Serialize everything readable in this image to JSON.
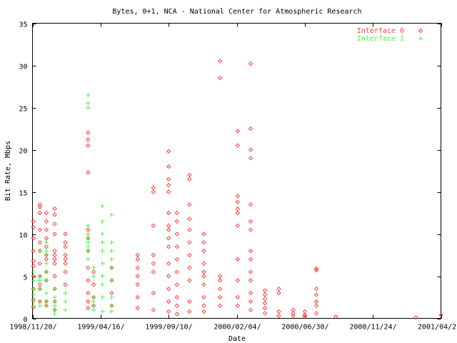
{
  "chart_data": {
    "type": "scatter",
    "title": "Bytes, 0+1, NCA - National Center for Atmospheric Research",
    "xlabel": "Date",
    "ylabel": "Bit Rate, Mbps",
    "ylim": [
      0,
      35
    ],
    "xlim": [
      "1998-11-20",
      "2001-04-20"
    ],
    "yticks": [
      0,
      5,
      10,
      15,
      20,
      25,
      30,
      35
    ],
    "xticks": [
      {
        "date": "1998-11-20",
        "label": "1998/11/20/"
      },
      {
        "date": "1999-04-16",
        "label": "1999/04/16/"
      },
      {
        "date": "1999-09-10",
        "label": "1999/09/10/"
      },
      {
        "date": "2000-02-04",
        "label": "2000/02/04/"
      },
      {
        "date": "2000-06-30",
        "label": "2000/06/30/"
      },
      {
        "date": "2000-11-24",
        "label": "2000/11/24/"
      },
      {
        "date": "2001-04-20",
        "label": "2001/04/2"
      }
    ],
    "legend_position": "top-right",
    "grid": false,
    "series": [
      {
        "name": "Interface 0",
        "color": "#ff4040",
        "marker": "diamond",
        "points": [
          [
            "1998-11-22",
            11.5
          ],
          [
            "1998-11-22",
            10.8
          ],
          [
            "1998-11-22",
            9.5
          ],
          [
            "1998-11-22",
            8.0
          ],
          [
            "1998-11-22",
            6.8
          ],
          [
            "1998-11-22",
            6.2
          ],
          [
            "1998-11-22",
            5.0
          ],
          [
            "1998-11-22",
            3.5
          ],
          [
            "1998-11-22",
            2.2
          ],
          [
            "1998-11-22",
            1.3
          ],
          [
            "1998-12-06",
            13.5
          ],
          [
            "1998-12-06",
            13.2
          ],
          [
            "1998-12-06",
            12.5
          ],
          [
            "1998-12-06",
            10.5
          ],
          [
            "1998-12-06",
            9.0
          ],
          [
            "1998-12-06",
            8.0
          ],
          [
            "1998-12-06",
            6.5
          ],
          [
            "1998-12-06",
            5.0
          ],
          [
            "1998-12-06",
            4.0
          ],
          [
            "1998-12-06",
            3.5
          ],
          [
            "1998-12-06",
            2.0
          ],
          [
            "1998-12-20",
            12.5
          ],
          [
            "1998-12-20",
            11.5
          ],
          [
            "1998-12-20",
            10.5
          ],
          [
            "1998-12-20",
            9.5
          ],
          [
            "1998-12-20",
            8.5
          ],
          [
            "1998-12-20",
            7.5
          ],
          [
            "1998-12-20",
            7.0
          ],
          [
            "1998-12-20",
            5.5
          ],
          [
            "1998-12-20",
            4.5
          ],
          [
            "1998-12-20",
            2.0
          ],
          [
            "1998-12-20",
            1.5
          ],
          [
            "1999-01-07",
            13.0
          ],
          [
            "1999-01-07",
            12.3
          ],
          [
            "1999-01-07",
            11.2
          ],
          [
            "1999-01-07",
            10.0
          ],
          [
            "1999-01-07",
            8.0
          ],
          [
            "1999-01-07",
            7.5
          ],
          [
            "1999-01-07",
            7.0
          ],
          [
            "1999-01-07",
            6.5
          ],
          [
            "1999-01-07",
            5.0
          ],
          [
            "1999-01-07",
            3.5
          ],
          [
            "1999-01-07",
            2.0
          ],
          [
            "1999-01-07",
            1.0
          ],
          [
            "1999-01-30",
            10.0
          ],
          [
            "1999-01-30",
            9.0
          ],
          [
            "1999-01-30",
            8.5
          ],
          [
            "1999-01-30",
            7.5
          ],
          [
            "1999-01-30",
            7.0
          ],
          [
            "1999-01-30",
            6.5
          ],
          [
            "1999-01-30",
            5.5
          ],
          [
            "1999-01-30",
            4.0
          ],
          [
            "1999-03-20",
            22.0
          ],
          [
            "1999-03-20",
            21.2
          ],
          [
            "1999-03-20",
            20.5
          ],
          [
            "1999-03-20",
            17.3
          ],
          [
            "1999-03-20",
            10.5
          ],
          [
            "1999-03-20",
            9.5
          ],
          [
            "1999-03-20",
            8.0
          ],
          [
            "1999-03-20",
            6.0
          ],
          [
            "1999-03-20",
            4.5
          ],
          [
            "1999-03-20",
            3.0
          ],
          [
            "1999-03-20",
            2.0
          ],
          [
            "1999-03-20",
            1.2
          ],
          [
            "1999-04-01",
            5.5
          ],
          [
            "1999-04-01",
            4.0
          ],
          [
            "1999-04-01",
            2.5
          ],
          [
            "1999-04-01",
            1.5
          ],
          [
            "1999-05-10",
            6.0
          ],
          [
            "1999-05-10",
            4.5
          ],
          [
            "1999-05-10",
            3.0
          ],
          [
            "1999-05-10",
            1.5
          ],
          [
            "1999-07-05",
            7.5
          ],
          [
            "1999-07-05",
            7.0
          ],
          [
            "1999-07-05",
            6.0
          ],
          [
            "1999-07-05",
            5.0
          ],
          [
            "1999-07-05",
            4.0
          ],
          [
            "1999-07-05",
            2.5
          ],
          [
            "1999-07-05",
            1.2
          ],
          [
            "1999-08-08",
            15.5
          ],
          [
            "1999-08-08",
            15.0
          ],
          [
            "1999-08-08",
            11.0
          ],
          [
            "1999-08-08",
            7.5
          ],
          [
            "1999-08-08",
            6.5
          ],
          [
            "1999-08-08",
            5.5
          ],
          [
            "1999-08-08",
            3.0
          ],
          [
            "1999-08-08",
            1.0
          ],
          [
            "1999-09-10",
            19.8
          ],
          [
            "1999-09-10",
            18.0
          ],
          [
            "1999-09-10",
            16.5
          ],
          [
            "1999-09-10",
            15.8
          ],
          [
            "1999-09-10",
            15.0
          ],
          [
            "1999-09-10",
            12.5
          ],
          [
            "1999-09-10",
            11.0
          ],
          [
            "1999-09-10",
            10.5
          ],
          [
            "1999-09-10",
            9.5
          ],
          [
            "1999-09-10",
            8.5
          ],
          [
            "1999-09-10",
            6.5
          ],
          [
            "1999-09-10",
            5.0
          ],
          [
            "1999-09-10",
            3.5
          ],
          [
            "1999-09-10",
            2.0
          ],
          [
            "1999-09-10",
            0.8
          ],
          [
            "1999-09-28",
            12.5
          ],
          [
            "1999-09-28",
            11.5
          ],
          [
            "1999-09-28",
            10.0
          ],
          [
            "1999-09-28",
            8.5
          ],
          [
            "1999-09-28",
            7.0
          ],
          [
            "1999-09-28",
            5.5
          ],
          [
            "1999-09-28",
            4.0
          ],
          [
            "1999-09-28",
            2.5
          ],
          [
            "1999-09-28",
            1.5
          ],
          [
            "1999-09-28",
            0.5
          ],
          [
            "1999-10-25",
            17.0
          ],
          [
            "1999-10-25",
            16.5
          ],
          [
            "1999-10-25",
            13.5
          ],
          [
            "1999-10-25",
            11.8
          ],
          [
            "1999-10-25",
            10.5
          ],
          [
            "1999-10-25",
            9.0
          ],
          [
            "1999-10-25",
            7.5
          ],
          [
            "1999-10-25",
            6.0
          ],
          [
            "1999-10-25",
            4.5
          ],
          [
            "1999-10-25",
            2.0
          ],
          [
            "1999-10-25",
            0.8
          ],
          [
            "1999-11-25",
            10.0
          ],
          [
            "1999-11-25",
            9.0
          ],
          [
            "1999-11-25",
            8.0
          ],
          [
            "1999-11-25",
            6.5
          ],
          [
            "1999-11-25",
            5.5
          ],
          [
            "1999-11-25",
            5.0
          ],
          [
            "1999-11-25",
            4.0
          ],
          [
            "1999-11-25",
            2.5
          ],
          [
            "1999-11-25",
            1.5
          ],
          [
            "1999-11-25",
            0.8
          ],
          [
            "1999-12-30",
            30.5
          ],
          [
            "1999-12-30",
            28.5
          ],
          [
            "1999-12-30",
            5.0
          ],
          [
            "1999-12-30",
            4.5
          ],
          [
            "1999-12-30",
            3.5
          ],
          [
            "1999-12-30",
            2.5
          ],
          [
            "1999-12-30",
            1.5
          ],
          [
            "2000-02-06",
            22.2
          ],
          [
            "2000-02-06",
            20.5
          ],
          [
            "2000-02-06",
            14.5
          ],
          [
            "2000-02-06",
            13.8
          ],
          [
            "2000-02-06",
            13.0
          ],
          [
            "2000-02-06",
            12.5
          ],
          [
            "2000-02-06",
            11.0
          ],
          [
            "2000-02-06",
            7.0
          ],
          [
            "2000-02-06",
            4.5
          ],
          [
            "2000-02-06",
            2.5
          ],
          [
            "2000-02-06",
            1.5
          ],
          [
            "2000-03-05",
            30.2
          ],
          [
            "2000-03-05",
            22.5
          ],
          [
            "2000-03-05",
            20.0
          ],
          [
            "2000-03-05",
            19.0
          ],
          [
            "2000-03-05",
            13.5
          ],
          [
            "2000-03-05",
            11.5
          ],
          [
            "2000-03-05",
            10.5
          ],
          [
            "2000-03-05",
            8.0
          ],
          [
            "2000-03-05",
            7.0
          ],
          [
            "2000-03-05",
            5.5
          ],
          [
            "2000-03-05",
            4.5
          ],
          [
            "2000-03-05",
            3.0
          ],
          [
            "2000-03-05",
            2.0
          ],
          [
            "2000-03-05",
            1.0
          ],
          [
            "2000-04-05",
            3.3
          ],
          [
            "2000-04-05",
            2.8
          ],
          [
            "2000-04-05",
            2.3
          ],
          [
            "2000-04-05",
            1.8
          ],
          [
            "2000-04-05",
            1.2
          ],
          [
            "2000-04-05",
            0.6
          ],
          [
            "2000-05-05",
            3.5
          ],
          [
            "2000-05-05",
            3.0
          ],
          [
            "2000-05-05",
            0.8
          ],
          [
            "2000-05-05",
            0.3
          ],
          [
            "2000-06-05",
            1.0
          ],
          [
            "2000-06-05",
            0.6
          ],
          [
            "2000-06-05",
            0.3
          ],
          [
            "2000-06-30",
            0.8
          ],
          [
            "2000-06-30",
            0.4
          ],
          [
            "2000-06-30",
            0.2
          ],
          [
            "2000-07-25",
            5.9
          ],
          [
            "2000-07-25",
            5.7
          ],
          [
            "2000-07-25",
            3.5
          ],
          [
            "2000-07-25",
            2.8
          ],
          [
            "2000-07-25",
            2.0
          ],
          [
            "2000-07-25",
            1.5
          ],
          [
            "2000-07-25",
            0.6
          ],
          [
            "2000-09-05",
            0.2
          ],
          [
            "2001-02-25",
            0.1
          ],
          [
            "2001-04-20",
            0.4
          ]
        ]
      },
      {
        "name": "Interface 1",
        "color": "#40ff40",
        "marker": "plus",
        "points": [
          [
            "1998-11-22",
            5.5
          ],
          [
            "1998-11-22",
            4.5
          ],
          [
            "1998-11-22",
            3.5
          ],
          [
            "1998-11-22",
            2.8
          ],
          [
            "1998-11-22",
            2.0
          ],
          [
            "1998-11-22",
            1.5
          ],
          [
            "1998-12-06",
            8.0
          ],
          [
            "1998-12-06",
            5.0
          ],
          [
            "1998-12-06",
            4.5
          ],
          [
            "1998-12-06",
            3.5
          ],
          [
            "1998-12-06",
            2.0
          ],
          [
            "1998-12-06",
            1.5
          ],
          [
            "1998-12-20",
            9.0
          ],
          [
            "1998-12-20",
            8.0
          ],
          [
            "1998-12-20",
            7.5
          ],
          [
            "1998-12-20",
            6.5
          ],
          [
            "1998-12-20",
            5.5
          ],
          [
            "1998-12-20",
            4.5
          ],
          [
            "1998-12-20",
            3.0
          ],
          [
            "1998-12-20",
            2.0
          ],
          [
            "1998-12-20",
            1.5
          ],
          [
            "1999-01-07",
            3.5
          ],
          [
            "1999-01-07",
            2.5
          ],
          [
            "1999-01-07",
            2.0
          ],
          [
            "1999-01-07",
            1.5
          ],
          [
            "1999-01-07",
            1.0
          ],
          [
            "1999-01-07",
            0.5
          ],
          [
            "1999-01-30",
            3.0
          ],
          [
            "1999-01-30",
            2.0
          ],
          [
            "1999-01-30",
            1.0
          ],
          [
            "1999-03-20",
            26.5
          ],
          [
            "1999-03-20",
            25.5
          ],
          [
            "1999-03-20",
            25.0
          ],
          [
            "1999-03-20",
            11.0
          ],
          [
            "1999-03-20",
            10.0
          ],
          [
            "1999-03-20",
            9.5
          ],
          [
            "1999-03-20",
            9.0
          ],
          [
            "1999-03-20",
            8.5
          ],
          [
            "1999-03-20",
            8.0
          ],
          [
            "1999-03-20",
            7.0
          ],
          [
            "1999-04-01",
            6.0
          ],
          [
            "1999-04-01",
            5.0
          ],
          [
            "1999-04-01",
            2.5
          ],
          [
            "1999-04-01",
            2.0
          ],
          [
            "1999-04-01",
            1.5
          ],
          [
            "1999-04-01",
            1.0
          ],
          [
            "1999-04-20",
            13.3
          ],
          [
            "1999-04-20",
            11.5
          ],
          [
            "1999-04-20",
            10.0
          ],
          [
            "1999-04-20",
            9.0
          ],
          [
            "1999-04-20",
            8.0
          ],
          [
            "1999-04-20",
            6.5
          ],
          [
            "1999-04-20",
            5.0
          ],
          [
            "1999-04-20",
            4.0
          ],
          [
            "1999-04-20",
            2.5
          ],
          [
            "1999-04-20",
            0.8
          ],
          [
            "1999-05-10",
            12.3
          ],
          [
            "1999-05-10",
            9.0
          ],
          [
            "1999-05-10",
            8.0
          ],
          [
            "1999-05-10",
            7.0
          ],
          [
            "1999-05-10",
            6.0
          ],
          [
            "1999-05-10",
            4.5
          ],
          [
            "1999-05-10",
            2.5
          ],
          [
            "1999-05-10",
            1.5
          ],
          [
            "1999-05-10",
            0.8
          ]
        ]
      }
    ]
  }
}
